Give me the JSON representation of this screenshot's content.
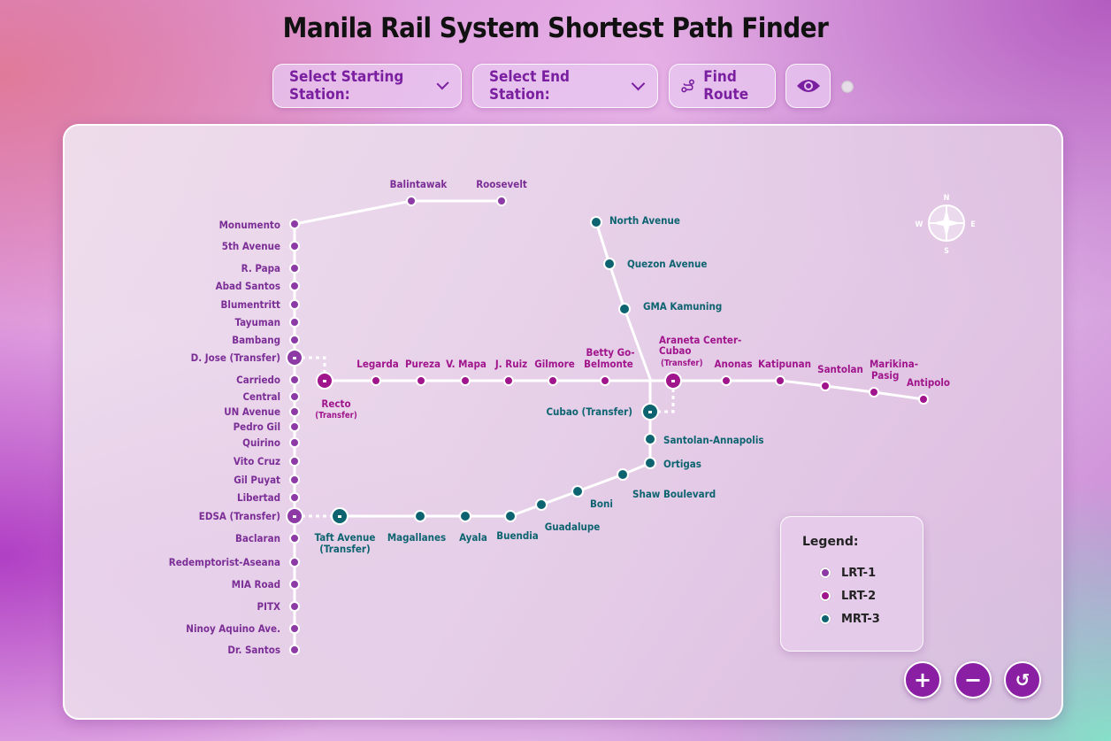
{
  "title": "Manila Rail System Shortest Path Finder",
  "controls": {
    "start_label": "Select Starting Station:",
    "end_label": "Select End Station:",
    "find_label": "Find Route"
  },
  "icons": {
    "start_dropdown": "chevron-down-icon",
    "end_dropdown": "chevron-down-icon",
    "find_route": "route-icon",
    "toggle_view": "eye-icon",
    "compass": "compass-icon",
    "zoom_in": "plus-icon",
    "zoom_out": "minus-icon",
    "reset": "reset-icon"
  },
  "colors": {
    "lrt1": "#8e3aa6",
    "lrt2": "#a0148c",
    "mrt3": "#0d6470",
    "accent": "#8a1fa4"
  },
  "compass": {
    "n": "N",
    "e": "E",
    "s": "S",
    "w": "W"
  },
  "legend": {
    "title": "Legend:",
    "items": [
      {
        "label": "LRT-1",
        "color": "#8e3aa6"
      },
      {
        "label": "LRT-2",
        "color": "#a0148c"
      },
      {
        "label": "MRT-3",
        "color": "#0d6470"
      }
    ]
  },
  "zoom": {
    "in": "+",
    "out": "−",
    "reset": "↺"
  },
  "lines": {
    "lrt1": {
      "name": "LRT-1",
      "stations": [
        "Roosevelt",
        "Balintawak",
        "Monumento",
        "5th Avenue",
        "R. Papa",
        "Abad Santos",
        "Blumentritt",
        "Tayuman",
        "Bambang",
        "D. Jose (Transfer)",
        "Carriedo",
        "Central",
        "UN Avenue",
        "Pedro Gil",
        "Quirino",
        "Vito Cruz",
        "Gil Puyat",
        "Libertad",
        "EDSA (Transfer)",
        "Baclaran",
        "Redemptorist-Aseana",
        "MIA Road",
        "PITX",
        "Ninoy Aquino Ave.",
        "Dr. Santos"
      ]
    },
    "lrt2": {
      "name": "LRT-2",
      "stations": [
        "Recto",
        "Legarda",
        "Pureza",
        "V. Mapa",
        "J. Ruiz",
        "Gilmore",
        "Betty Go-Belmonte",
        "Araneta Center-Cubao",
        "Anonas",
        "Katipunan",
        "Santolan",
        "Marikina-Pasig",
        "Antipolo"
      ]
    },
    "mrt3": {
      "name": "MRT-3",
      "stations": [
        "North Avenue",
        "Quezon Avenue",
        "GMA Kamuning",
        "Cubao (Transfer)",
        "Santolan-Annapolis",
        "Ortigas",
        "Shaw Boulevard",
        "Boni",
        "Guadalupe",
        "Buendia",
        "Ayala",
        "Magallanes",
        "Taft Avenue (Transfer)"
      ]
    }
  },
  "label_text": {
    "recto_sub": "(Transfer)",
    "araneta_1": "Araneta Center-",
    "araneta_2": "Cubao",
    "araneta_3": "(Transfer)",
    "betty_1": "Betty Go-",
    "betty_2": "Belmonte",
    "marikina_1": "Marikina-",
    "marikina_2": "Pasig",
    "taft_1": "Taft Avenue",
    "taft_2": "(Transfer)"
  }
}
